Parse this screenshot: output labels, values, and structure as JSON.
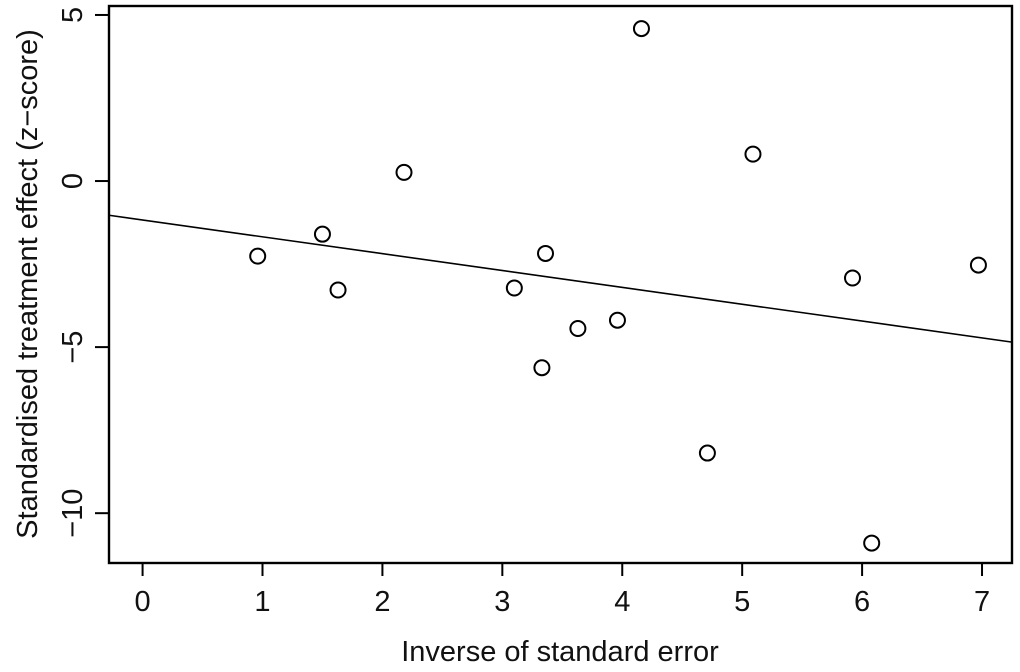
{
  "figure": {
    "background": "#ffffff",
    "stroke_color": "#000000",
    "text_color": "#111111"
  },
  "chart_data": {
    "type": "scatter",
    "title": "",
    "xlabel": "Inverse of standard error",
    "ylabel": "Standardised treatment effect (z−score)",
    "grid": false,
    "legend": false,
    "xlim": [
      -0.28,
      7.25
    ],
    "ylim": [
      -11.5,
      5.27
    ],
    "x_ticks": [
      0,
      1,
      2,
      3,
      4,
      5,
      6,
      7
    ],
    "x_tick_labels": [
      "0",
      "1",
      "2",
      "3",
      "4",
      "5",
      "6",
      "7"
    ],
    "y_ticks": [
      5,
      0,
      -5,
      -10
    ],
    "y_tick_labels": [
      "5",
      "0",
      "−5",
      "−10"
    ],
    "points": [
      {
        "x": 0.96,
        "y": -2.26
      },
      {
        "x": 1.5,
        "y": -1.6
      },
      {
        "x": 1.63,
        "y": -3.28
      },
      {
        "x": 2.18,
        "y": 0.26
      },
      {
        "x": 3.1,
        "y": -3.22
      },
      {
        "x": 3.36,
        "y": -2.18
      },
      {
        "x": 3.33,
        "y": -5.62
      },
      {
        "x": 3.63,
        "y": -4.44
      },
      {
        "x": 3.96,
        "y": -4.19
      },
      {
        "x": 4.16,
        "y": 4.59
      },
      {
        "x": 4.71,
        "y": -8.19
      },
      {
        "x": 5.09,
        "y": 0.81
      },
      {
        "x": 5.92,
        "y": -2.92
      },
      {
        "x": 6.08,
        "y": -10.9
      },
      {
        "x": 6.97,
        "y": -2.53
      }
    ],
    "regression_line": {
      "x1": -0.28,
      "y1": -1.03,
      "x2": 7.25,
      "y2": -4.85,
      "slope": -0.51,
      "intercept": -1.17
    }
  }
}
